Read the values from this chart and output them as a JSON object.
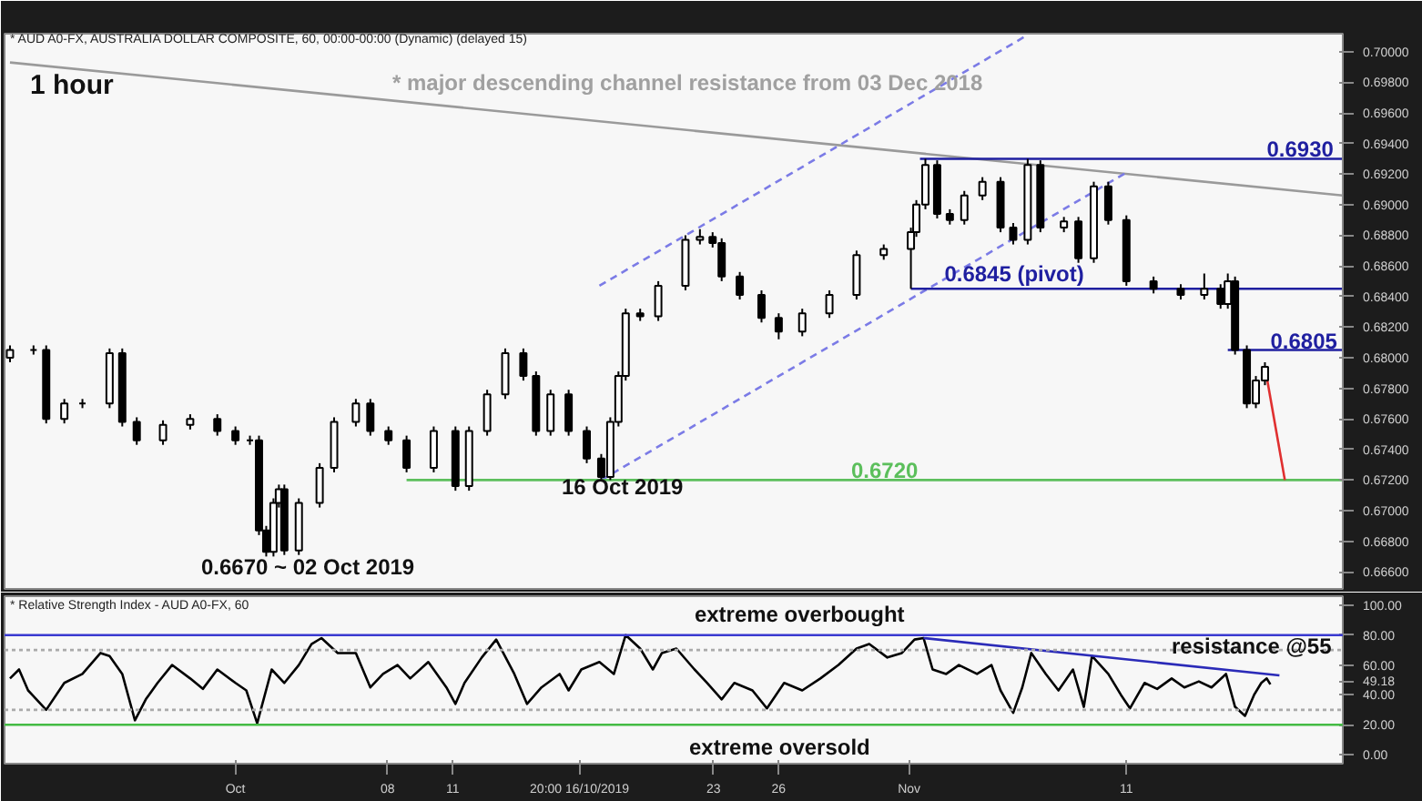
{
  "chart_data": [
    {
      "type": "candlestick",
      "color": "#000000",
      "annotations": [
        "* AUD A0-FX, AUSTRALIA DOLLAR COMPOSITE, 60, 00:00-00:00 (Dynamic) (delayed 15)",
        "1 hour",
        "* major descending channel resistance from 03 Dec 2018",
        {
          "text": "0.6930",
          "x": "2019-11-17T11:00",
          "y": 0.693
        },
        {
          "text": "0.6845 (pivot)",
          "x": "2019-11-02T15:00",
          "y": 0.6845
        },
        {
          "text": "0.6805",
          "x": "2019-11-17T15:00",
          "y": 0.6805
        },
        {
          "text": "0.6720",
          "x": "2019-10-29T08:00",
          "y": 0.672
        },
        "16 Oct 2019",
        "0.6670 ~ 02 Oct 2019"
      ],
      "x": [
        "2019-09-20T15:00",
        "2019-09-21T17:00",
        "2019-09-22T07:00",
        "2019-09-23T03:00",
        "2019-09-23T23:00",
        "2019-09-25T05:00",
        "2019-09-25T19:00",
        "2019-09-26T11:00",
        "2019-09-27T16:00",
        "2019-09-28T22:00",
        "2019-09-30T04:00",
        "2019-10-01T00:00",
        "2019-10-01T16:00",
        "2019-10-02T02:00",
        "2019-10-02T10:00",
        "2019-10-02T18:00",
        "2019-10-03T00:00",
        "2019-10-03T06:00",
        "2019-10-03T22:00",
        "2019-10-04T21:00",
        "2019-10-05T13:00",
        "2019-10-06T13:00",
        "2019-10-07T05:00",
        "2019-10-08T01:00",
        "2019-10-08T21:00",
        "2019-10-10T03:00",
        "2019-10-11T03:00",
        "2019-10-11T18:00",
        "2019-10-12T14:00",
        "2019-10-13T10:00",
        "2019-10-14T06:00",
        "2019-10-14T20:00",
        "2019-10-15T12:00",
        "2019-10-16T08:00",
        "2019-10-17T04:00",
        "2019-10-17T20:00",
        "2019-10-18T06:00",
        "2019-10-18T15:00",
        "2019-10-18T23:00",
        "2019-10-19T15:00",
        "2019-10-20T11:00",
        "2019-10-21T17:00",
        "2019-10-22T09:00",
        "2019-10-22T23:00",
        "2019-10-23T09:00",
        "2019-10-24T05:00",
        "2019-10-25T05:00",
        "2019-10-26T00:00",
        "2019-10-27T02:00",
        "2019-10-28T08:00",
        "2019-10-29T14:00",
        "2019-10-30T20:00",
        "2019-11-01T02:00",
        "2019-11-01T08:00",
        "2019-11-01T18:00",
        "2019-11-02T07:00",
        "2019-11-02T21:00",
        "2019-11-03T13:00",
        "2019-11-04T09:00",
        "2019-11-05T05:00",
        "2019-11-05T19:00",
        "2019-11-06T11:00",
        "2019-11-07T01:00",
        "2019-11-08T03:00",
        "2019-11-08T19:00",
        "2019-11-09T12:00",
        "2019-11-10T04:00",
        "2019-11-11T00:00",
        "2019-11-12T06:00",
        "2019-11-13T12:00",
        "2019-11-14T14:00",
        "2019-11-15T08:00",
        "2019-11-15T16:00",
        "2019-11-16T00:00",
        "2019-11-16T13:00",
        "2019-11-16T23:00",
        "2019-11-17T09:00"
      ],
      "ohlc": [
        [
          0.68,
          0.6808,
          0.6797,
          0.6805
        ],
        [
          0.6805,
          0.6808,
          0.6802,
          0.6805
        ],
        [
          0.6805,
          0.6808,
          0.6757,
          0.676
        ],
        [
          0.676,
          0.6773,
          0.6757,
          0.677
        ],
        [
          0.677,
          0.6773,
          0.6767,
          0.677
        ],
        [
          0.677,
          0.6806,
          0.6767,
          0.6803
        ],
        [
          0.6803,
          0.6806,
          0.6755,
          0.6758
        ],
        [
          0.6758,
          0.6761,
          0.6743,
          0.6746
        ],
        [
          0.6746,
          0.6759,
          0.6743,
          0.6756
        ],
        [
          0.6756,
          0.6763,
          0.6753,
          0.676
        ],
        [
          0.676,
          0.6763,
          0.6749,
          0.6752
        ],
        [
          0.6752,
          0.6755,
          0.6743,
          0.6746
        ],
        [
          0.6746,
          0.6749,
          0.6743,
          0.6746
        ],
        [
          0.6746,
          0.6749,
          0.6684,
          0.6687
        ],
        [
          0.6687,
          0.669,
          0.667,
          0.6673
        ],
        [
          0.6673,
          0.6708,
          0.667,
          0.6705
        ],
        [
          0.6705,
          0.6717,
          0.6702,
          0.6714
        ],
        [
          0.6714,
          0.6717,
          0.6671,
          0.6674
        ],
        [
          0.6674,
          0.6708,
          0.6671,
          0.6705
        ],
        [
          0.6705,
          0.6731,
          0.6702,
          0.6728
        ],
        [
          0.6728,
          0.6761,
          0.6725,
          0.6758
        ],
        [
          0.6758,
          0.6773,
          0.6755,
          0.677
        ],
        [
          0.677,
          0.6773,
          0.6749,
          0.6752
        ],
        [
          0.6752,
          0.6755,
          0.6743,
          0.6746
        ],
        [
          0.6746,
          0.6749,
          0.6725,
          0.6728
        ],
        [
          0.6728,
          0.6755,
          0.6725,
          0.6752
        ],
        [
          0.6752,
          0.6755,
          0.6713,
          0.6716
        ],
        [
          0.6716,
          0.6755,
          0.6713,
          0.6752
        ],
        [
          0.6752,
          0.6779,
          0.6749,
          0.6776
        ],
        [
          0.6776,
          0.6806,
          0.6773,
          0.6803
        ],
        [
          0.6803,
          0.6806,
          0.6785,
          0.6788
        ],
        [
          0.6788,
          0.6791,
          0.6749,
          0.6752
        ],
        [
          0.6752,
          0.6779,
          0.6749,
          0.6776
        ],
        [
          0.6776,
          0.6779,
          0.6749,
          0.6752
        ],
        [
          0.6752,
          0.6755,
          0.6731,
          0.6734
        ],
        [
          0.6734,
          0.6737,
          0.672,
          0.6722
        ],
        [
          0.6722,
          0.6761,
          0.672,
          0.6758
        ],
        [
          0.6758,
          0.6791,
          0.6755,
          0.6788
        ],
        [
          0.6788,
          0.6832,
          0.6785,
          0.6829
        ],
        [
          0.6829,
          0.6832,
          0.6824,
          0.6827
        ],
        [
          0.6827,
          0.685,
          0.6824,
          0.6847
        ],
        [
          0.6847,
          0.688,
          0.6844,
          0.6877
        ],
        [
          0.6877,
          0.6884,
          0.6874,
          0.6879
        ],
        [
          0.6879,
          0.6882,
          0.6872,
          0.6875
        ],
        [
          0.6875,
          0.6878,
          0.685,
          0.6853
        ],
        [
          0.6853,
          0.6856,
          0.6838,
          0.6841
        ],
        [
          0.6841,
          0.6844,
          0.6823,
          0.6826
        ],
        [
          0.6826,
          0.6829,
          0.6812,
          0.6817
        ],
        [
          0.6817,
          0.6832,
          0.6814,
          0.6829
        ],
        [
          0.6829,
          0.6844,
          0.6826,
          0.6841
        ],
        [
          0.6841,
          0.687,
          0.6838,
          0.6867
        ],
        [
          0.6867,
          0.6874,
          0.6864,
          0.6871
        ],
        [
          0.6871,
          0.6885,
          0.6845,
          0.6882
        ],
        [
          0.6882,
          0.6903,
          0.6879,
          0.69
        ],
        [
          0.69,
          0.693,
          0.6897,
          0.6926
        ],
        [
          0.6926,
          0.6929,
          0.6891,
          0.6894
        ],
        [
          0.6894,
          0.6897,
          0.6887,
          0.689
        ],
        [
          0.689,
          0.6909,
          0.6887,
          0.6906
        ],
        [
          0.6906,
          0.6918,
          0.6903,
          0.6915
        ],
        [
          0.6915,
          0.6918,
          0.6882,
          0.6885
        ],
        [
          0.6885,
          0.6888,
          0.6874,
          0.6877
        ],
        [
          0.6877,
          0.693,
          0.6874,
          0.6926
        ],
        [
          0.6926,
          0.6929,
          0.6882,
          0.6885
        ],
        [
          0.6885,
          0.6892,
          0.6882,
          0.6889
        ],
        [
          0.6889,
          0.6892,
          0.6862,
          0.6865
        ],
        [
          0.6865,
          0.6915,
          0.6862,
          0.6912
        ],
        [
          0.6912,
          0.6915,
          0.6887,
          0.689
        ],
        [
          0.689,
          0.6893,
          0.6847,
          0.685
        ],
        [
          0.685,
          0.6853,
          0.6842,
          0.6845
        ],
        [
          0.6845,
          0.6848,
          0.6838,
          0.6841
        ],
        [
          0.6841,
          0.6855,
          0.6838,
          0.6845
        ],
        [
          0.6845,
          0.6848,
          0.6832,
          0.6835
        ],
        [
          0.6835,
          0.6855,
          0.6832,
          0.685
        ],
        [
          0.685,
          0.6853,
          0.6802,
          0.6805
        ],
        [
          0.6805,
          0.6808,
          0.6767,
          0.677
        ],
        [
          0.677,
          0.6788,
          0.6767,
          0.6785
        ],
        [
          0.6785,
          0.6797,
          0.6782,
          0.6794
        ]
      ],
      "series": [
        {
          "type": "line",
          "color": "#9a9a9a",
          "x": [
            "2019-09-20T15:00",
            "2019-11-20T23:00"
          ],
          "values": [
            0.6993,
            0.6906
          ]
        },
        {
          "type": "line",
          "color": "#7b7be6",
          "line_style": "dashed",
          "x": [
            "2019-10-17T18:00",
            "2019-11-06T11:00"
          ],
          "values": [
            0.6847,
            0.7011
          ]
        },
        {
          "type": "line",
          "color": "#7b7be6",
          "line_style": "dashed",
          "x": [
            "2019-10-17T20:00",
            "2019-11-11T00:00"
          ],
          "values": [
            0.672,
            0.6921
          ]
        },
        {
          "type": "line",
          "color": "#1f1fa0",
          "x": [
            "2019-11-01T12:00",
            "2019-11-20T23:00"
          ],
          "values": [
            0.693,
            0.693
          ]
        },
        {
          "type": "line",
          "color": "#1f1fa0",
          "x": [
            "2019-11-01T02:00",
            "2019-11-20T23:00"
          ],
          "values": [
            0.6845,
            0.6845
          ]
        },
        {
          "type": "line",
          "color": "#1f1fa0",
          "x": [
            "2019-11-15T16:00",
            "2019-11-20T23:00"
          ],
          "values": [
            0.6805,
            0.6805
          ]
        },
        {
          "type": "line",
          "color": "#5cbf5c",
          "x": [
            "2019-10-08T21:00",
            "2019-11-20T23:00"
          ],
          "values": [
            0.672,
            0.672
          ]
        },
        {
          "type": "line",
          "color": "#e03030",
          "x": [
            "2019-11-17T09:00",
            "2019-11-18T07:00"
          ],
          "values": [
            0.6794,
            0.672
          ]
        }
      ],
      "xlim": [
        "2019-09-20T09:00",
        "2019-11-20T23:00"
      ],
      "ylim": [
        0.66488,
        0.70118
      ],
      "yticks": [
        {
          "value": 0.666,
          "label": "0.66600"
        },
        {
          "value": 0.668,
          "label": "0.66800"
        },
        {
          "value": 0.67,
          "label": "0.67000"
        },
        {
          "value": 0.672,
          "label": "0.67200"
        },
        {
          "value": 0.674,
          "label": "0.67400"
        },
        {
          "value": 0.676,
          "label": "0.67600"
        },
        {
          "value": 0.678,
          "label": "0.67800"
        },
        {
          "value": 0.68,
          "label": "0.68000"
        },
        {
          "value": 0.682,
          "label": "0.68200"
        },
        {
          "value": 0.684,
          "label": "0.68400"
        },
        {
          "value": 0.686,
          "label": "0.68600"
        },
        {
          "value": 0.688,
          "label": "0.68800"
        },
        {
          "value": 0.69,
          "label": "0.69000"
        },
        {
          "value": 0.692,
          "label": "0.69200"
        },
        {
          "value": 0.694,
          "label": "0.69400"
        },
        {
          "value": 0.696,
          "label": "0.69600"
        },
        {
          "value": 0.698,
          "label": "0.69800"
        },
        {
          "value": 0.7,
          "label": "0.70000"
        }
      ],
      "tick_labels": "y"
    },
    {
      "type": "line",
      "annotations": [
        "* Relative Strength Index - AUD A0-FX, 60",
        {
          "text": "extreme overbought",
          "x": "2019-10-22T03:00",
          "y": 84
        },
        "extreme oversold",
        {
          "text": "resistance @55",
          "x": "2019-11-13T02:00",
          "y": 63
        }
      ],
      "series": [
        {
          "color": "#000000",
          "x": [
            "2019-09-20T15:00",
            "2019-09-21T01:00",
            "2019-09-21T11:00",
            "2019-09-22T07:00",
            "2019-09-23T03:00",
            "2019-09-23T23:00",
            "2019-09-24T19:00",
            "2019-09-25T05:00",
            "2019-09-25T19:00",
            "2019-09-26T09:00",
            "2019-09-26T21:00",
            "2019-09-27T10:00",
            "2019-09-28T02:00",
            "2019-09-28T22:00",
            "2019-09-29T12:00",
            "2019-09-30T04:00",
            "2019-10-01T00:00",
            "2019-10-01T12:00",
            "2019-10-02T00:00",
            "2019-10-02T16:00",
            "2019-10-03T06:00",
            "2019-10-03T22:00",
            "2019-10-04T12:00",
            "2019-10-04T23:00",
            "2019-10-05T17:00",
            "2019-10-06T13:00",
            "2019-10-07T05:00",
            "2019-10-07T19:00",
            "2019-10-08T11:00",
            "2019-10-09T01:00",
            "2019-10-09T21:00",
            "2019-10-10T17:00",
            "2019-10-11T03:00",
            "2019-10-11T13:00",
            "2019-10-12T08:00",
            "2019-10-13T00:00",
            "2019-10-13T20:00",
            "2019-10-14T10:00",
            "2019-10-15T02:00",
            "2019-10-15T22:00",
            "2019-10-16T08:00",
            "2019-10-16T22:00",
            "2019-10-17T18:00",
            "2019-10-18T10:00",
            "2019-10-18T23:00",
            "2019-10-19T15:00",
            "2019-10-20T05:00",
            "2019-10-20T15:00",
            "2019-10-21T07:00",
            "2019-10-22T03:00",
            "2019-10-22T17:00",
            "2019-10-23T09:00",
            "2019-10-23T23:00",
            "2019-10-24T19:00",
            "2019-10-25T11:00",
            "2019-10-26T06:00",
            "2019-10-27T02:00",
            "2019-10-27T22:00",
            "2019-10-28T18:00",
            "2019-10-29T14:00",
            "2019-10-30T04:00",
            "2019-10-31T00:00",
            "2019-10-31T16:00",
            "2019-11-01T06:00",
            "2019-11-01T16:00",
            "2019-11-02T02:00",
            "2019-11-02T17:00",
            "2019-11-03T07:00",
            "2019-11-04T03:00",
            "2019-11-04T19:00",
            "2019-11-05T05:00",
            "2019-11-05T19:00",
            "2019-11-06T05:00",
            "2019-11-06T15:00",
            "2019-11-07T07:00",
            "2019-11-07T21:00",
            "2019-11-08T13:00",
            "2019-11-09T01:00",
            "2019-11-09T10:00",
            "2019-11-10T04:00",
            "2019-11-10T18:00",
            "2019-11-11T04:00",
            "2019-11-11T20:00",
            "2019-11-12T10:00",
            "2019-11-13T02:00",
            "2019-11-13T16:00",
            "2019-11-14T08:00",
            "2019-11-14T22:00",
            "2019-11-15T14:00",
            "2019-11-16T00:00",
            "2019-11-16T11:00",
            "2019-11-16T21:00",
            "2019-11-17T05:00",
            "2019-11-17T11:00",
            "2019-11-17T15:00"
          ],
          "values": [
            51,
            57,
            43,
            30,
            48,
            54,
            68,
            66,
            54,
            23,
            37,
            48,
            60,
            51,
            44,
            57,
            48,
            43,
            21,
            57,
            48,
            60,
            74,
            78,
            68,
            68,
            45,
            54,
            60,
            51,
            62,
            45,
            34,
            48,
            65,
            77,
            54,
            34,
            45,
            54,
            43,
            57,
            62,
            54,
            80,
            71,
            57,
            68,
            71,
            57,
            48,
            37,
            48,
            43,
            31,
            48,
            43,
            51,
            60,
            71,
            74,
            65,
            68,
            77,
            78,
            57,
            54,
            60,
            54,
            60,
            43,
            28,
            45,
            68,
            54,
            43,
            57,
            32,
            66,
            54,
            40,
            31,
            48,
            44,
            51,
            45,
            49,
            45,
            54,
            32,
            26,
            40,
            48,
            51,
            47
          ]
        },
        {
          "color": "#2b2bb8",
          "x": [
            "2019-11-01T16:00",
            "2019-11-18T01:00"
          ],
          "values": [
            78,
            53
          ]
        }
      ],
      "ref_lines": [
        {
          "axis": "y",
          "value": 80,
          "color": "#3a3ad0"
        },
        {
          "axis": "y",
          "value": 20,
          "color": "#44bb44"
        },
        {
          "axis": "y",
          "value": 70,
          "color": "#aaaaaa",
          "line_style": "dotted"
        },
        {
          "axis": "y",
          "value": 30,
          "color": "#aaaaaa",
          "line_style": "dotted"
        }
      ],
      "xlim": [
        "2019-09-20T09:00",
        "2019-11-20T23:00"
      ],
      "ylim": [
        -6,
        106
      ],
      "xticks": [
        {
          "value": "2019-10-01",
          "label": "Oct"
        },
        {
          "value": "2019-10-08",
          "label": "08"
        },
        {
          "value": "2019-10-11",
          "label": "11"
        },
        {
          "value": "2019-10-16T20:00",
          "label": "20:00 16/10/2019"
        },
        {
          "value": "2019-10-23",
          "label": "23"
        },
        {
          "value": "2019-10-26",
          "label": "26"
        },
        {
          "value": "2019-11-01",
          "label": "Nov"
        },
        {
          "value": "2019-11-11",
          "label": "11"
        }
      ],
      "yticks": [
        {
          "value": 0,
          "label": "0.00"
        },
        {
          "value": 20,
          "label": "20.00"
        },
        {
          "value": 40,
          "label": "40.00"
        },
        {
          "value": 49.18,
          "label": "49.18"
        },
        {
          "value": 60,
          "label": "60.00"
        },
        {
          "value": 80,
          "label": "80.00"
        },
        {
          "value": 100,
          "label": "100.00"
        }
      ]
    }
  ]
}
